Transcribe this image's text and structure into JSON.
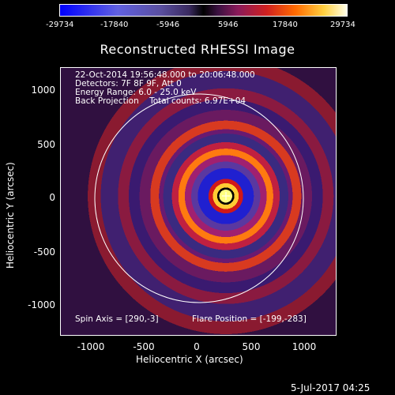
{
  "colorbar": {
    "ticks": [
      "-29734",
      "-17840",
      "-5946",
      "5946",
      "17840",
      "29734"
    ]
  },
  "title": "Reconstructed RHESSI Image",
  "info": {
    "line1": "22-Oct-2014 19:56:48.000 to 20:06:48.000",
    "line2": "Detectors: 7F 8F 9F, Att 0",
    "line3": "Energy Range: 6.0 - 25.0 keV",
    "line4": "Back Projection    Total counts: 6.97E+04",
    "spin_axis": "Spin Axis = [290,-3]",
    "flare_position": "Flare Position = [-199,-283]"
  },
  "axes": {
    "xlabel": "Heliocentric X (arcsec)",
    "ylabel": "Heliocentric Y (arcsec)",
    "xticks": [
      "-1000",
      "-500",
      "0",
      "500",
      "1000"
    ],
    "yticks": [
      "1000",
      "500",
      "0",
      "-500",
      "-1000"
    ]
  },
  "footer_date": "5-Jul-2017 04:25",
  "colors": {
    "limb": "#ffffff",
    "background": "#000000"
  }
}
